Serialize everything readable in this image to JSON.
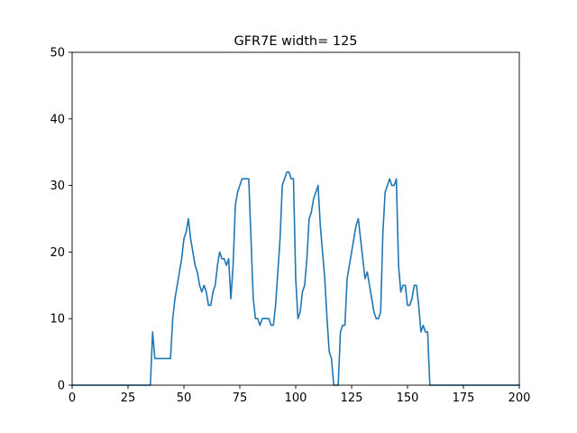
{
  "chart_data": {
    "type": "line",
    "title": "GFR7E width= 125",
    "xlabel": "",
    "ylabel": "",
    "xlim": [
      0,
      200
    ],
    "ylim": [
      0,
      50
    ],
    "xticks": [
      0,
      25,
      50,
      75,
      100,
      125,
      150,
      175,
      200
    ],
    "yticks": [
      0,
      10,
      20,
      30,
      40,
      50
    ],
    "grid": false,
    "series": [
      {
        "color": "#1f77b4",
        "x": [
          0,
          35,
          36,
          37,
          38,
          39,
          40,
          41,
          42,
          43,
          44,
          45,
          46,
          47,
          48,
          49,
          50,
          51,
          52,
          53,
          54,
          55,
          56,
          57,
          58,
          59,
          60,
          61,
          62,
          63,
          64,
          65,
          66,
          67,
          68,
          69,
          70,
          71,
          72,
          73,
          74,
          75,
          76,
          77,
          78,
          79,
          80,
          81,
          82,
          83,
          84,
          85,
          86,
          87,
          88,
          89,
          90,
          91,
          92,
          93,
          94,
          95,
          96,
          97,
          98,
          99,
          100,
          101,
          102,
          103,
          104,
          105,
          106,
          107,
          108,
          109,
          110,
          111,
          112,
          113,
          114,
          115,
          116,
          117,
          118,
          119,
          120,
          121,
          122,
          123,
          124,
          125,
          126,
          127,
          128,
          129,
          130,
          131,
          132,
          133,
          134,
          135,
          136,
          137,
          138,
          139,
          140,
          141,
          142,
          143,
          144,
          145,
          146,
          147,
          148,
          149,
          150,
          151,
          152,
          153,
          154,
          155,
          156,
          157,
          158,
          159,
          160,
          161,
          200
        ],
        "y": [
          0,
          0,
          8,
          4,
          4,
          4,
          4,
          4,
          4,
          4,
          4,
          10,
          13,
          15,
          17,
          19,
          22,
          23,
          25,
          22,
          20,
          18,
          17,
          15,
          14,
          15,
          14,
          12,
          12,
          14,
          15,
          18,
          20,
          19,
          19,
          18,
          19,
          13,
          18,
          27,
          29,
          30,
          31,
          31,
          31,
          31,
          22,
          13,
          10,
          10,
          9,
          10,
          10,
          10,
          10,
          9,
          9,
          12,
          17,
          22,
          30,
          31,
          32,
          32,
          31,
          31,
          16,
          10,
          11,
          14,
          15,
          19,
          25,
          26,
          28,
          29,
          30,
          24,
          20,
          16,
          10,
          5,
          4,
          0,
          0,
          0,
          8,
          9,
          9,
          16,
          18,
          20,
          22,
          24,
          25,
          22,
          19,
          16,
          17,
          15,
          13,
          11,
          10,
          10,
          11,
          23,
          29,
          30,
          31,
          30,
          30,
          31,
          18,
          14,
          15,
          15,
          12,
          12,
          13,
          15,
          15,
          12,
          8,
          9,
          8,
          8,
          0,
          0,
          0
        ]
      }
    ]
  }
}
